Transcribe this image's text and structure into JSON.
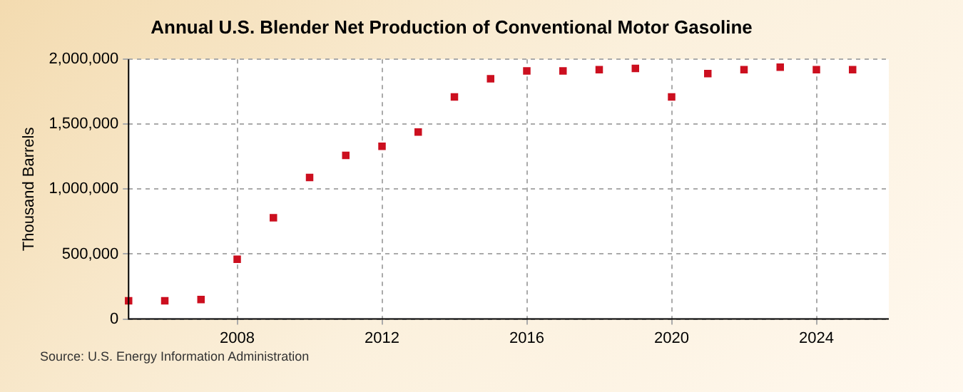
{
  "chart_data": {
    "type": "scatter",
    "title": "Annual U.S. Blender Net Production of Conventional Motor Gasoline",
    "ylabel": "Thousand Barrels",
    "annotations": [
      "Source: U.S. Energy Information Administration"
    ],
    "x": [
      2005,
      2006,
      2007,
      2008,
      2009,
      2010,
      2011,
      2012,
      2013,
      2014,
      2015,
      2016,
      2017,
      2018,
      2019,
      2020,
      2021,
      2022,
      2023,
      2024,
      2025
    ],
    "series": [
      {
        "color": "#cc0f1f",
        "values": [
          140000,
          140000,
          150000,
          460000,
          780000,
          1090000,
          1260000,
          1330000,
          1440000,
          1710000,
          1850000,
          1910000,
          1910000,
          1920000,
          1930000,
          1710000,
          1890000,
          1920000,
          1940000,
          1920000,
          1920000
        ]
      }
    ],
    "xlim": [
      2005,
      2026
    ],
    "xticks": [
      2008,
      2012,
      2016,
      2020,
      2024
    ],
    "ylim": [
      0,
      2000000
    ],
    "yticks": [
      {
        "value": 0,
        "label": "0"
      },
      {
        "value": 500000,
        "label": "500,000"
      },
      {
        "value": 1000000,
        "label": "1,000,000"
      },
      {
        "value": 1500000,
        "label": "1,500,000"
      },
      {
        "value": 2000000,
        "label": "2,000,000"
      }
    ],
    "grid": true,
    "legend": false,
    "marker": "square"
  }
}
